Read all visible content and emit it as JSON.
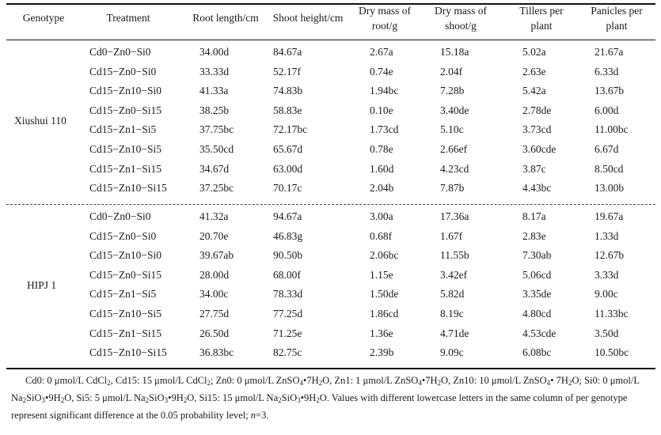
{
  "headers": [
    {
      "key": "genotype",
      "lines": [
        "Genotype"
      ]
    },
    {
      "key": "treatment",
      "lines": [
        "Treatment"
      ]
    },
    {
      "key": "root_length",
      "lines": [
        "Root length/cm"
      ]
    },
    {
      "key": "shoot_height",
      "lines": [
        "Shoot height/cm"
      ]
    },
    {
      "key": "dry_root",
      "lines": [
        "Dry mass of",
        "root/g"
      ]
    },
    {
      "key": "dry_shoot",
      "lines": [
        "Dry mass of",
        "shoot/g"
      ]
    },
    {
      "key": "tillers",
      "lines": [
        "Tillers per",
        "plant"
      ]
    },
    {
      "key": "panicles",
      "lines": [
        "Panicles  per",
        "plant"
      ]
    }
  ],
  "groups": [
    {
      "genotype": "Xiushui 110",
      "rows": [
        [
          "Cd0−Zn0−Si0",
          "34.00d",
          "84.67a",
          "2.67a",
          "15.18a",
          "5.02a",
          "21.67a"
        ],
        [
          "Cd15−Zn0−Si0",
          "33.33d",
          "52.17f",
          "0.74e",
          "2.04f",
          "2.63e",
          "6.33d"
        ],
        [
          "Cd15−Zn10−Si0",
          "41.33a",
          "74.83b",
          "1.94bc",
          "7.28b",
          "5.42a",
          "13.67b"
        ],
        [
          "Cd15−Zn0−Si15",
          "38.25b",
          "58.83e",
          "0.10e",
          "3.40de",
          "2.78de",
          "6.00d"
        ],
        [
          "Cd15−Zn1−Si5",
          "37.75bc",
          "72.17bc",
          "1.73cd",
          "5.10c",
          "3.73cd",
          "11.00bc"
        ],
        [
          "Cd15−Zn10−Si5",
          "35.50cd",
          "65.67d",
          "0.78e",
          "2.66ef",
          "3.60cde",
          "6.67d"
        ],
        [
          "Cd15−Zn1−Si15",
          "34.67d",
          "63.00d",
          "1.60d",
          "4.23cd",
          "3.87c",
          "8.50cd"
        ],
        [
          "Cd15−Zn10−Si15",
          "37.25bc",
          "70.17c",
          "2.04b",
          "7.87b",
          "4.43bc",
          "13.00b"
        ]
      ]
    },
    {
      "genotype": "HIPJ 1",
      "rows": [
        [
          "Cd0−Zn0−Si0",
          "41.32a",
          "94.67a",
          "3.00a",
          "17.36a",
          "8.17a",
          "19.67a"
        ],
        [
          "Cd15−Zn0−Si0",
          "20.70e",
          "46.83g",
          "0.68f",
          "1.67f",
          "2.83e",
          "1.33d"
        ],
        [
          "Cd15−Zn10−Si0",
          "39.67ab",
          "90.50b",
          "2.06bc",
          "11.55b",
          "7.30ab",
          "12.67b"
        ],
        [
          "Cd15−Zn0−Si15",
          "28.00d",
          "68.00f",
          "1.15e",
          "3.42ef",
          "5.06cd",
          "3.33d"
        ],
        [
          "Cd15−Zn1−Si5",
          "34.00c",
          "78.33d",
          "1.50de",
          "5.82d",
          "3.35de",
          "9.00c"
        ],
        [
          "Cd15−Zn10−Si5",
          "27.75d",
          "77.25d",
          "1.86cd",
          "8.19c",
          "4.80cd",
          "11.33bc"
        ],
        [
          "Cd15−Zn1−Si15",
          "26.50d",
          "71.25e",
          "1.36e",
          "4.71de",
          "4.53cde",
          "3.50d"
        ],
        [
          "Cd15−Zn10−Si15",
          "36.83bc",
          "82.75c",
          "2.39b",
          "9.09c",
          "6.08bc",
          "10.50bc"
        ]
      ]
    }
  ],
  "footnote": {
    "parts": [
      "Cd0: 0 μmol/L CdCl",
      "2",
      ", Cd15: 15 μmol/L CdCl",
      "2",
      "; Zn0: 0 μmol/L ZnSO",
      "4",
      "•7H",
      "2",
      "O, Zn1: 1 μmol/L ZnSO",
      "4",
      "•7H",
      "2",
      "O, Zn10: 10 μmol/L ZnSO",
      "4",
      "• 7H",
      "2",
      "O; Si0: 0 μmol/L Na",
      "2",
      "SiO",
      "3",
      "•9H",
      "2",
      "O, Si5: 5 μmol/L Na",
      "2",
      "SiO",
      "3",
      "•9H",
      "2",
      "O, Si15: 15 μmol/L Na",
      "2",
      "SiO",
      "3",
      "•9H",
      "2",
      "O. Values with different lowercase letters in the same column of per genotype represent significant difference at the 0.05 probability level; ",
      "n",
      "=3."
    ]
  }
}
